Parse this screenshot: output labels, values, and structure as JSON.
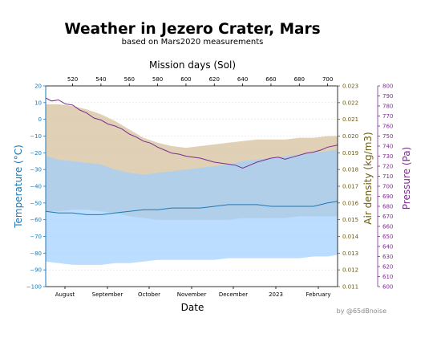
{
  "chart_data": {
    "type": "area",
    "title": "Weather in Jezero Crater, Mars",
    "subtitle": "based on Mars2020 measurements",
    "xlabel": "Date",
    "top_xlabel": "Mission days (Sol)",
    "ylabel_left": "Temperature (°C)",
    "ylabel_right_1": "Air density (kg/m3)",
    "ylabel_right_2": "Pressure (Pa)",
    "credit": "by @65dBnoise",
    "x_months": [
      "August",
      "September",
      "October",
      "November",
      "December",
      "2023",
      "February"
    ],
    "sol_ticks": [
      520,
      540,
      560,
      580,
      600,
      620,
      640,
      660,
      680,
      700
    ],
    "sol_range": [
      501,
      707
    ],
    "temperature_ylim": [
      -100,
      20
    ],
    "temperature_ticks": [
      20,
      10,
      0,
      -10,
      -20,
      -30,
      -40,
      -50,
      -60,
      -70,
      -80,
      -90,
      -100
    ],
    "density_ylim": [
      0.011,
      0.023
    ],
    "density_ticks": [
      "0.023",
      "0.022",
      "0.021",
      "0.020",
      "0.019",
      "0.018",
      "0.017",
      "0.016",
      "0.015",
      "0.014",
      "0.013",
      "0.012",
      "0.011"
    ],
    "pressure_ylim": [
      600,
      800
    ],
    "pressure_ticks": [
      800,
      790,
      780,
      770,
      760,
      750,
      740,
      730,
      720,
      710,
      700,
      690,
      680,
      670,
      660,
      650,
      640,
      630,
      620,
      610,
      600
    ],
    "colors": {
      "temperature": "#1f77b4",
      "temperature_fill": "#9ecfff",
      "density": "#7a6a1a",
      "density_fill": "#d8c4a4",
      "pressure": "#7b2d8e",
      "temperature_axis": "#1f77b4"
    },
    "series": [
      {
        "name": "Temperature (°C)",
        "axis": "temperature",
        "x_sol": [
          501,
          510,
          520,
          530,
          540,
          550,
          560,
          570,
          580,
          590,
          600,
          610,
          620,
          630,
          640,
          650,
          660,
          670,
          680,
          690,
          700,
          707
        ],
        "values": [
          -55,
          -56,
          -56,
          -57,
          -57,
          -56,
          -55,
          -54,
          -54,
          -53,
          -53,
          -53,
          -52,
          -51,
          -51,
          -51,
          -52,
          -52,
          -52,
          -52,
          -50,
          -49
        ],
        "min": [
          -85,
          -86,
          -87,
          -87,
          -87,
          -86,
          -86,
          -85,
          -84,
          -84,
          -84,
          -84,
          -84,
          -83,
          -83,
          -83,
          -83,
          -83,
          -83,
          -82,
          -82,
          -81
        ],
        "max": [
          -22,
          -24,
          -25,
          -26,
          -27,
          -30,
          -32,
          -33,
          -32,
          -31,
          -30,
          -29,
          -28,
          -27,
          -25,
          -24,
          -23,
          -22,
          -21,
          -20,
          -19,
          -18
        ]
      },
      {
        "name": "Air density (kg/m3)",
        "axis": "density",
        "x_sol": [
          501,
          510,
          520,
          530,
          540,
          550,
          560,
          570,
          580,
          590,
          600,
          610,
          620,
          630,
          640,
          650,
          660,
          670,
          680,
          690,
          700,
          707
        ],
        "min": [
          0.0155,
          0.0155,
          0.0156,
          0.0156,
          0.0155,
          0.0154,
          0.0152,
          0.0151,
          0.015,
          0.015,
          0.015,
          0.015,
          0.015,
          0.015,
          0.0151,
          0.0151,
          0.0151,
          0.0151,
          0.0152,
          0.0152,
          0.0152,
          0.0152
        ],
        "max": [
          0.0219,
          0.0219,
          0.0218,
          0.0216,
          0.0213,
          0.0209,
          0.0204,
          0.0199,
          0.0196,
          0.0194,
          0.0193,
          0.0194,
          0.0195,
          0.0196,
          0.0197,
          0.0198,
          0.0198,
          0.0198,
          0.0199,
          0.0199,
          0.02,
          0.02
        ]
      },
      {
        "name": "Pressure (Pa)",
        "axis": "pressure",
        "x_sol": [
          501,
          505,
          510,
          515,
          520,
          525,
          530,
          535,
          540,
          545,
          550,
          555,
          560,
          565,
          570,
          575,
          580,
          585,
          590,
          595,
          600,
          605,
          610,
          615,
          620,
          625,
          630,
          635,
          640,
          645,
          650,
          655,
          660,
          665,
          670,
          675,
          680,
          685,
          690,
          695,
          700,
          707
        ],
        "values": [
          788,
          785,
          786,
          782,
          781,
          776,
          773,
          768,
          766,
          762,
          760,
          757,
          752,
          749,
          745,
          743,
          739,
          736,
          733,
          732,
          730,
          729,
          728,
          726,
          724,
          723,
          722,
          721,
          718,
          721,
          724,
          726,
          728,
          729,
          727,
          729,
          731,
          733,
          734,
          736,
          739,
          741
        ]
      }
    ]
  }
}
